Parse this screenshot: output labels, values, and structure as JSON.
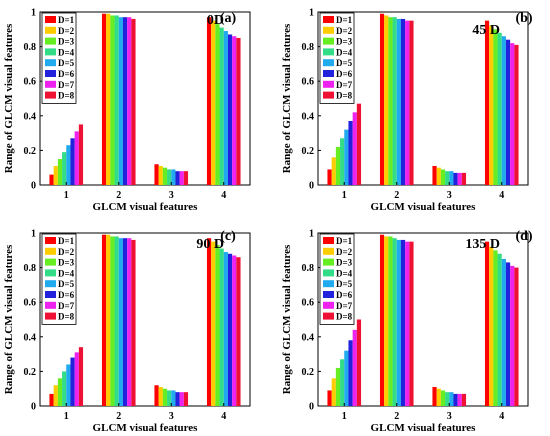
{
  "chart_data": [
    {
      "type": "bar",
      "letter": "(a)",
      "title": "0D",
      "xlabel": "GLCM visual features",
      "ylabel": "Range of GLCM visual features",
      "categories": [
        "1",
        "2",
        "3",
        "4"
      ],
      "ylim": [
        0,
        1
      ],
      "yticks": [
        "0",
        "0.2",
        "0.4",
        "0.6",
        "0.8",
        "1"
      ],
      "legend_position": "top-left",
      "series": [
        {
          "name": "D=1",
          "color": "#ff0000",
          "values": [
            0.06,
            0.99,
            0.12,
            0.97
          ]
        },
        {
          "name": "D=2",
          "color": "#ffcc00",
          "values": [
            0.11,
            0.99,
            0.11,
            0.95
          ]
        },
        {
          "name": "D=3",
          "color": "#66ee22",
          "values": [
            0.15,
            0.98,
            0.1,
            0.93
          ]
        },
        {
          "name": "D=4",
          "color": "#33dd88",
          "values": [
            0.19,
            0.98,
            0.09,
            0.91
          ]
        },
        {
          "name": "D=5",
          "color": "#22aaee",
          "values": [
            0.23,
            0.97,
            0.09,
            0.89
          ]
        },
        {
          "name": "D=6",
          "color": "#2222dd",
          "values": [
            0.27,
            0.97,
            0.08,
            0.87
          ]
        },
        {
          "name": "D=7",
          "color": "#ee22ee",
          "values": [
            0.31,
            0.97,
            0.08,
            0.86
          ]
        },
        {
          "name": "D=8",
          "color": "#ee1133",
          "values": [
            0.35,
            0.96,
            0.08,
            0.85
          ]
        }
      ]
    },
    {
      "type": "bar",
      "letter": "(b)",
      "title": "45 D",
      "xlabel": "GLCM visual features",
      "ylabel": "Range of GLCM visual features",
      "categories": [
        "1",
        "2",
        "3",
        "4"
      ],
      "ylim": [
        0,
        1
      ],
      "yticks": [
        "0",
        "0.2",
        "0.4",
        "0.6",
        "0.8",
        "1"
      ],
      "legend_position": "top-left",
      "series": [
        {
          "name": "D=1",
          "color": "#ff0000",
          "values": [
            0.09,
            0.99,
            0.11,
            0.95
          ]
        },
        {
          "name": "D=2",
          "color": "#ffcc00",
          "values": [
            0.16,
            0.98,
            0.1,
            0.92
          ]
        },
        {
          "name": "D=3",
          "color": "#66ee22",
          "values": [
            0.22,
            0.97,
            0.09,
            0.9
          ]
        },
        {
          "name": "D=4",
          "color": "#33dd88",
          "values": [
            0.27,
            0.97,
            0.08,
            0.88
          ]
        },
        {
          "name": "D=5",
          "color": "#22aaee",
          "values": [
            0.32,
            0.96,
            0.08,
            0.86
          ]
        },
        {
          "name": "D=6",
          "color": "#2222dd",
          "values": [
            0.37,
            0.96,
            0.07,
            0.84
          ]
        },
        {
          "name": "D=7",
          "color": "#ee22ee",
          "values": [
            0.42,
            0.95,
            0.07,
            0.82
          ]
        },
        {
          "name": "D=8",
          "color": "#ee1133",
          "values": [
            0.47,
            0.95,
            0.07,
            0.81
          ]
        }
      ]
    },
    {
      "type": "bar",
      "letter": "(c)",
      "title": "90 D",
      "xlabel": "GLCM visual features",
      "ylabel": "Range of GLCM visual features",
      "categories": [
        "1",
        "2",
        "3",
        "4"
      ],
      "ylim": [
        0,
        1
      ],
      "yticks": [
        "0",
        "0.2",
        "0.4",
        "0.6",
        "0.8",
        "1"
      ],
      "legend_position": "top-left",
      "series": [
        {
          "name": "D=1",
          "color": "#ff0000",
          "values": [
            0.07,
            0.99,
            0.12,
            0.97
          ]
        },
        {
          "name": "D=2",
          "color": "#ffcc00",
          "values": [
            0.12,
            0.99,
            0.11,
            0.95
          ]
        },
        {
          "name": "D=3",
          "color": "#66ee22",
          "values": [
            0.16,
            0.98,
            0.1,
            0.93
          ]
        },
        {
          "name": "D=4",
          "color": "#33dd88",
          "values": [
            0.2,
            0.98,
            0.09,
            0.91
          ]
        },
        {
          "name": "D=5",
          "color": "#22aaee",
          "values": [
            0.24,
            0.97,
            0.09,
            0.89
          ]
        },
        {
          "name": "D=6",
          "color": "#2222dd",
          "values": [
            0.28,
            0.97,
            0.08,
            0.88
          ]
        },
        {
          "name": "D=7",
          "color": "#ee22ee",
          "values": [
            0.31,
            0.97,
            0.08,
            0.87
          ]
        },
        {
          "name": "D=8",
          "color": "#ee1133",
          "values": [
            0.34,
            0.96,
            0.08,
            0.86
          ]
        }
      ]
    },
    {
      "type": "bar",
      "letter": "(d)",
      "title": "135 D",
      "xlabel": "GLCM visual features",
      "ylabel": "Range of GLCM visual features",
      "categories": [
        "1",
        "2",
        "3",
        "4"
      ],
      "ylim": [
        0,
        1
      ],
      "yticks": [
        "0",
        "0.2",
        "0.4",
        "0.6",
        "0.8",
        "1"
      ],
      "legend_position": "top-left",
      "series": [
        {
          "name": "D=1",
          "color": "#ff0000",
          "values": [
            0.09,
            0.99,
            0.11,
            0.95
          ]
        },
        {
          "name": "D=2",
          "color": "#ffcc00",
          "values": [
            0.16,
            0.98,
            0.1,
            0.92
          ]
        },
        {
          "name": "D=3",
          "color": "#66ee22",
          "values": [
            0.22,
            0.98,
            0.09,
            0.9
          ]
        },
        {
          "name": "D=4",
          "color": "#33dd88",
          "values": [
            0.27,
            0.97,
            0.08,
            0.88
          ]
        },
        {
          "name": "D=5",
          "color": "#22aaee",
          "values": [
            0.32,
            0.96,
            0.08,
            0.85
          ]
        },
        {
          "name": "D=6",
          "color": "#2222dd",
          "values": [
            0.38,
            0.96,
            0.07,
            0.83
          ]
        },
        {
          "name": "D=7",
          "color": "#ee22ee",
          "values": [
            0.44,
            0.95,
            0.07,
            0.81
          ]
        },
        {
          "name": "D=8",
          "color": "#ee1133",
          "values": [
            0.5,
            0.95,
            0.07,
            0.8
          ]
        }
      ]
    }
  ]
}
